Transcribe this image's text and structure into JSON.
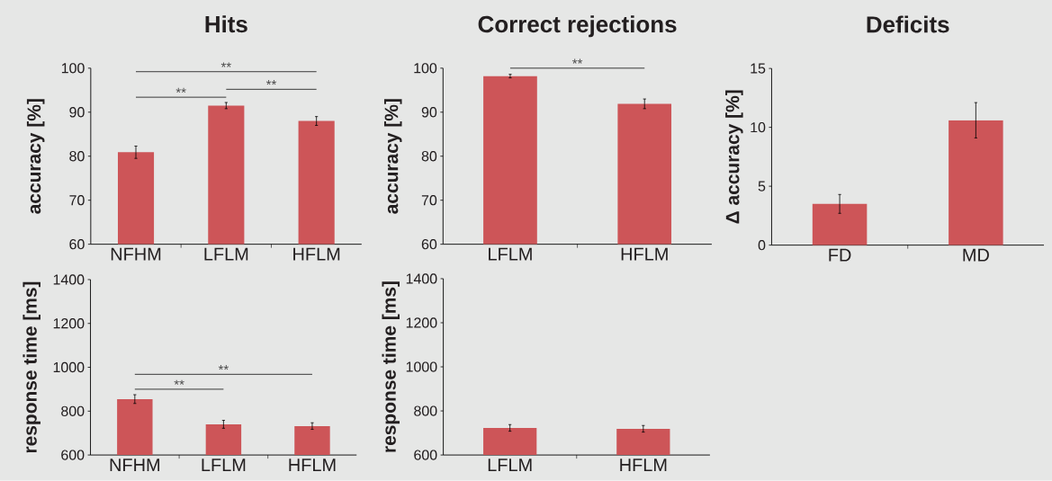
{
  "chart_data": [
    {
      "type": "bar",
      "title": "Hits",
      "ylabel": "accuracy [%]",
      "categories": [
        "NFHM",
        "LFLM",
        "HFLM"
      ],
      "values": [
        80.9,
        91.5,
        88.0
      ],
      "errors": [
        1.4,
        0.7,
        1.0
      ],
      "color": "#cd5558",
      "ylim": [
        60,
        100
      ],
      "yticks": [
        60,
        70,
        80,
        90,
        100
      ],
      "annotations": [
        "**",
        "**",
        "**"
      ]
    },
    {
      "type": "bar",
      "title": "Correct rejections",
      "ylabel": "accuracy [%]",
      "categories": [
        "LFLM",
        "HFLM"
      ],
      "values": [
        98.2,
        91.9
      ],
      "errors": [
        0.4,
        1.1
      ],
      "color": "#cd5558",
      "ylim": [
        60,
        100
      ],
      "yticks": [
        60,
        70,
        80,
        90,
        100
      ],
      "annotations": [
        "**"
      ]
    },
    {
      "type": "bar",
      "title": "Deficits",
      "ylabel": "Δ accuracy [%]",
      "categories": [
        "FD",
        "MD"
      ],
      "values": [
        3.5,
        10.6
      ],
      "errors": [
        0.8,
        1.5
      ],
      "color": "#cd5558",
      "ylim": [
        0,
        15
      ],
      "yticks": [
        0,
        5,
        10,
        15
      ]
    },
    {
      "type": "bar",
      "ylabel": "response time [ms]",
      "categories": [
        "NFHM",
        "LFLM",
        "HFLM"
      ],
      "values": [
        855,
        740,
        732
      ],
      "errors": [
        20,
        18,
        15
      ],
      "color": "#cd5558",
      "ylim": [
        600,
        1400
      ],
      "yticks": [
        600,
        800,
        1000,
        1200,
        1400
      ],
      "annotations": [
        "**",
        "**"
      ]
    },
    {
      "type": "bar",
      "ylabel": "response time [ms]",
      "categories": [
        "LFLM",
        "HFLM"
      ],
      "values": [
        723,
        719
      ],
      "errors": [
        15,
        15
      ],
      "color": "#cd5558",
      "ylim": [
        600,
        1400
      ],
      "yticks": [
        600,
        800,
        1000,
        1200,
        1400
      ]
    }
  ]
}
